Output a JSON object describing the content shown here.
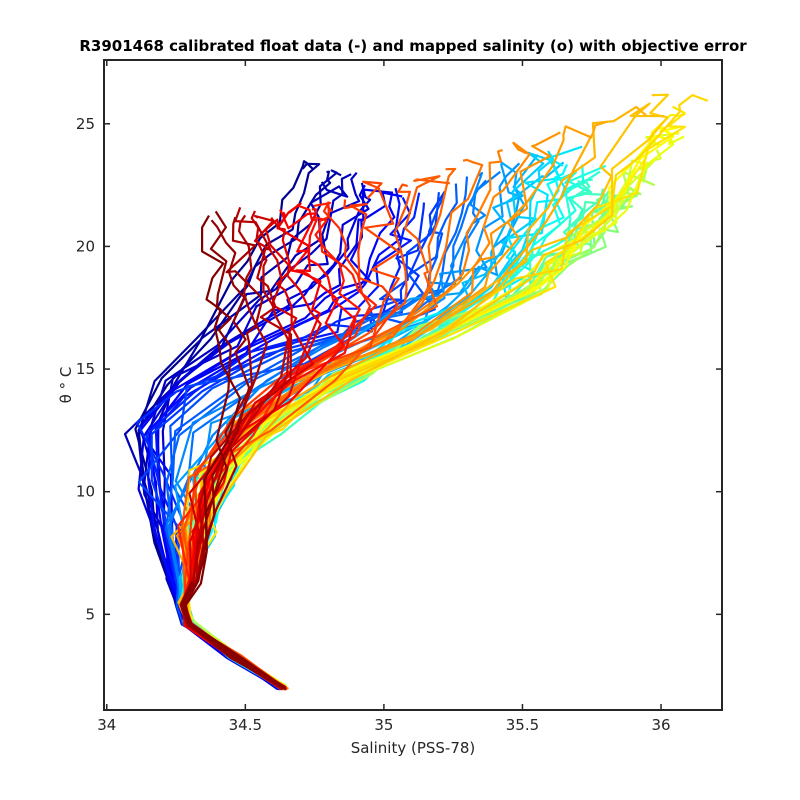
{
  "chart_data": {
    "type": "line",
    "title": "R3901468 calibrated float data (-) and mapped salinity (o) with objective error",
    "xlabel": "Salinity (PSS-78)",
    "ylabel": "θ ° C",
    "xlim": [
      33.99,
      36.22
    ],
    "ylim": [
      1.1,
      27.6
    ],
    "x_ticks": [
      34,
      34.5,
      35,
      35.5,
      36
    ],
    "x_tick_labels": [
      "34",
      "34.5",
      "35",
      "35.5",
      "36"
    ],
    "y_ticks": [
      5,
      10,
      15,
      20,
      25
    ],
    "y_tick_labels": [
      "5",
      "10",
      "15",
      "20",
      "25"
    ],
    "grid": false,
    "colormap": "jet",
    "colormap_stops": [
      "#00008f",
      "#0000ff",
      "#0080ff",
      "#00ffff",
      "#80ff80",
      "#ffff00",
      "#ff8000",
      "#ff0000",
      "#800000"
    ],
    "series_count": 90,
    "deep_water": [
      [
        34.64,
        2.0
      ],
      [
        34.45,
        3.3
      ],
      [
        34.3,
        4.6
      ],
      [
        34.27,
        5.4
      ],
      [
        34.31,
        6.3
      ]
    ],
    "representative_series": [
      {
        "color": "#0000cd",
        "points": [
          [
            34.62,
            2.0
          ],
          [
            34.45,
            3.3
          ],
          [
            34.28,
            4.6
          ],
          [
            34.26,
            5.3
          ],
          [
            34.22,
            6.4
          ],
          [
            34.18,
            8.0
          ],
          [
            34.15,
            10.0
          ],
          [
            34.13,
            12.5
          ],
          [
            34.2,
            14.5
          ],
          [
            34.32,
            16.3
          ],
          [
            34.45,
            18.5
          ],
          [
            34.6,
            21.0
          ],
          [
            34.72,
            23.3
          ]
        ]
      },
      {
        "color": "#00a0ff",
        "points": [
          [
            34.63,
            2.0
          ],
          [
            34.45,
            3.3
          ],
          [
            34.29,
            4.6
          ],
          [
            34.27,
            5.4
          ],
          [
            34.24,
            6.5
          ],
          [
            34.2,
            8.5
          ],
          [
            34.18,
            10.6
          ],
          [
            34.16,
            12.5
          ],
          [
            34.3,
            14.2
          ],
          [
            34.55,
            15.6
          ],
          [
            34.8,
            16.4
          ],
          [
            35.0,
            17.2
          ],
          [
            35.1,
            19.5
          ],
          [
            35.15,
            22.0
          ]
        ]
      },
      {
        "color": "#40ffb0",
        "points": [
          [
            34.64,
            2.0
          ],
          [
            34.46,
            3.3
          ],
          [
            34.3,
            4.6
          ],
          [
            34.28,
            5.4
          ],
          [
            34.29,
            6.5
          ],
          [
            34.33,
            8.5
          ],
          [
            34.4,
            10.5
          ],
          [
            34.55,
            12.5
          ],
          [
            34.85,
            14.5
          ],
          [
            35.1,
            16.2
          ],
          [
            35.35,
            18.0
          ],
          [
            35.5,
            20.0
          ],
          [
            35.55,
            22.5
          ],
          [
            35.62,
            24.0
          ]
        ]
      },
      {
        "color": "#ffff00",
        "points": [
          [
            34.64,
            2.0
          ],
          [
            34.46,
            3.3
          ],
          [
            34.3,
            4.6
          ],
          [
            34.28,
            5.4
          ],
          [
            34.3,
            6.5
          ],
          [
            34.32,
            8.5
          ],
          [
            34.4,
            10.6
          ],
          [
            34.6,
            12.8
          ],
          [
            34.9,
            14.8
          ],
          [
            35.2,
            16.5
          ],
          [
            35.5,
            18.0
          ],
          [
            35.72,
            19.8
          ],
          [
            35.85,
            21.5
          ]
        ]
      },
      {
        "color": "#ff9000",
        "points": [
          [
            34.65,
            2.0
          ],
          [
            34.47,
            3.3
          ],
          [
            34.3,
            4.6
          ],
          [
            34.28,
            5.4
          ],
          [
            34.3,
            6.5
          ],
          [
            34.32,
            8.5
          ],
          [
            34.38,
            10.5
          ],
          [
            34.55,
            12.7
          ],
          [
            34.85,
            14.6
          ],
          [
            35.2,
            16.5
          ],
          [
            35.55,
            18.5
          ],
          [
            35.8,
            21.5
          ],
          [
            36.05,
            25.5
          ],
          [
            36.1,
            26.2
          ]
        ]
      },
      {
        "color": "#ff2000",
        "points": [
          [
            34.64,
            2.0
          ],
          [
            34.46,
            3.3
          ],
          [
            34.3,
            4.6
          ],
          [
            34.28,
            5.4
          ],
          [
            34.3,
            6.5
          ],
          [
            34.3,
            8.5
          ],
          [
            34.33,
            10.5
          ],
          [
            34.48,
            12.7
          ],
          [
            34.7,
            14.8
          ],
          [
            34.9,
            16.3
          ],
          [
            34.95,
            17.5
          ],
          [
            34.85,
            19.5
          ],
          [
            34.8,
            21.5
          ]
        ]
      },
      {
        "color": "#900000",
        "points": [
          [
            34.64,
            2.0
          ],
          [
            34.46,
            3.3
          ],
          [
            34.3,
            4.6
          ],
          [
            34.28,
            5.4
          ],
          [
            34.33,
            6.3
          ],
          [
            34.35,
            7.5
          ],
          [
            34.36,
            9.0
          ],
          [
            34.38,
            10.5
          ],
          [
            34.42,
            12.0
          ],
          [
            34.46,
            13.8
          ],
          [
            34.42,
            15.5
          ],
          [
            34.4,
            17.5
          ],
          [
            34.38,
            19.5
          ],
          [
            34.35,
            21.2
          ]
        ]
      }
    ]
  }
}
